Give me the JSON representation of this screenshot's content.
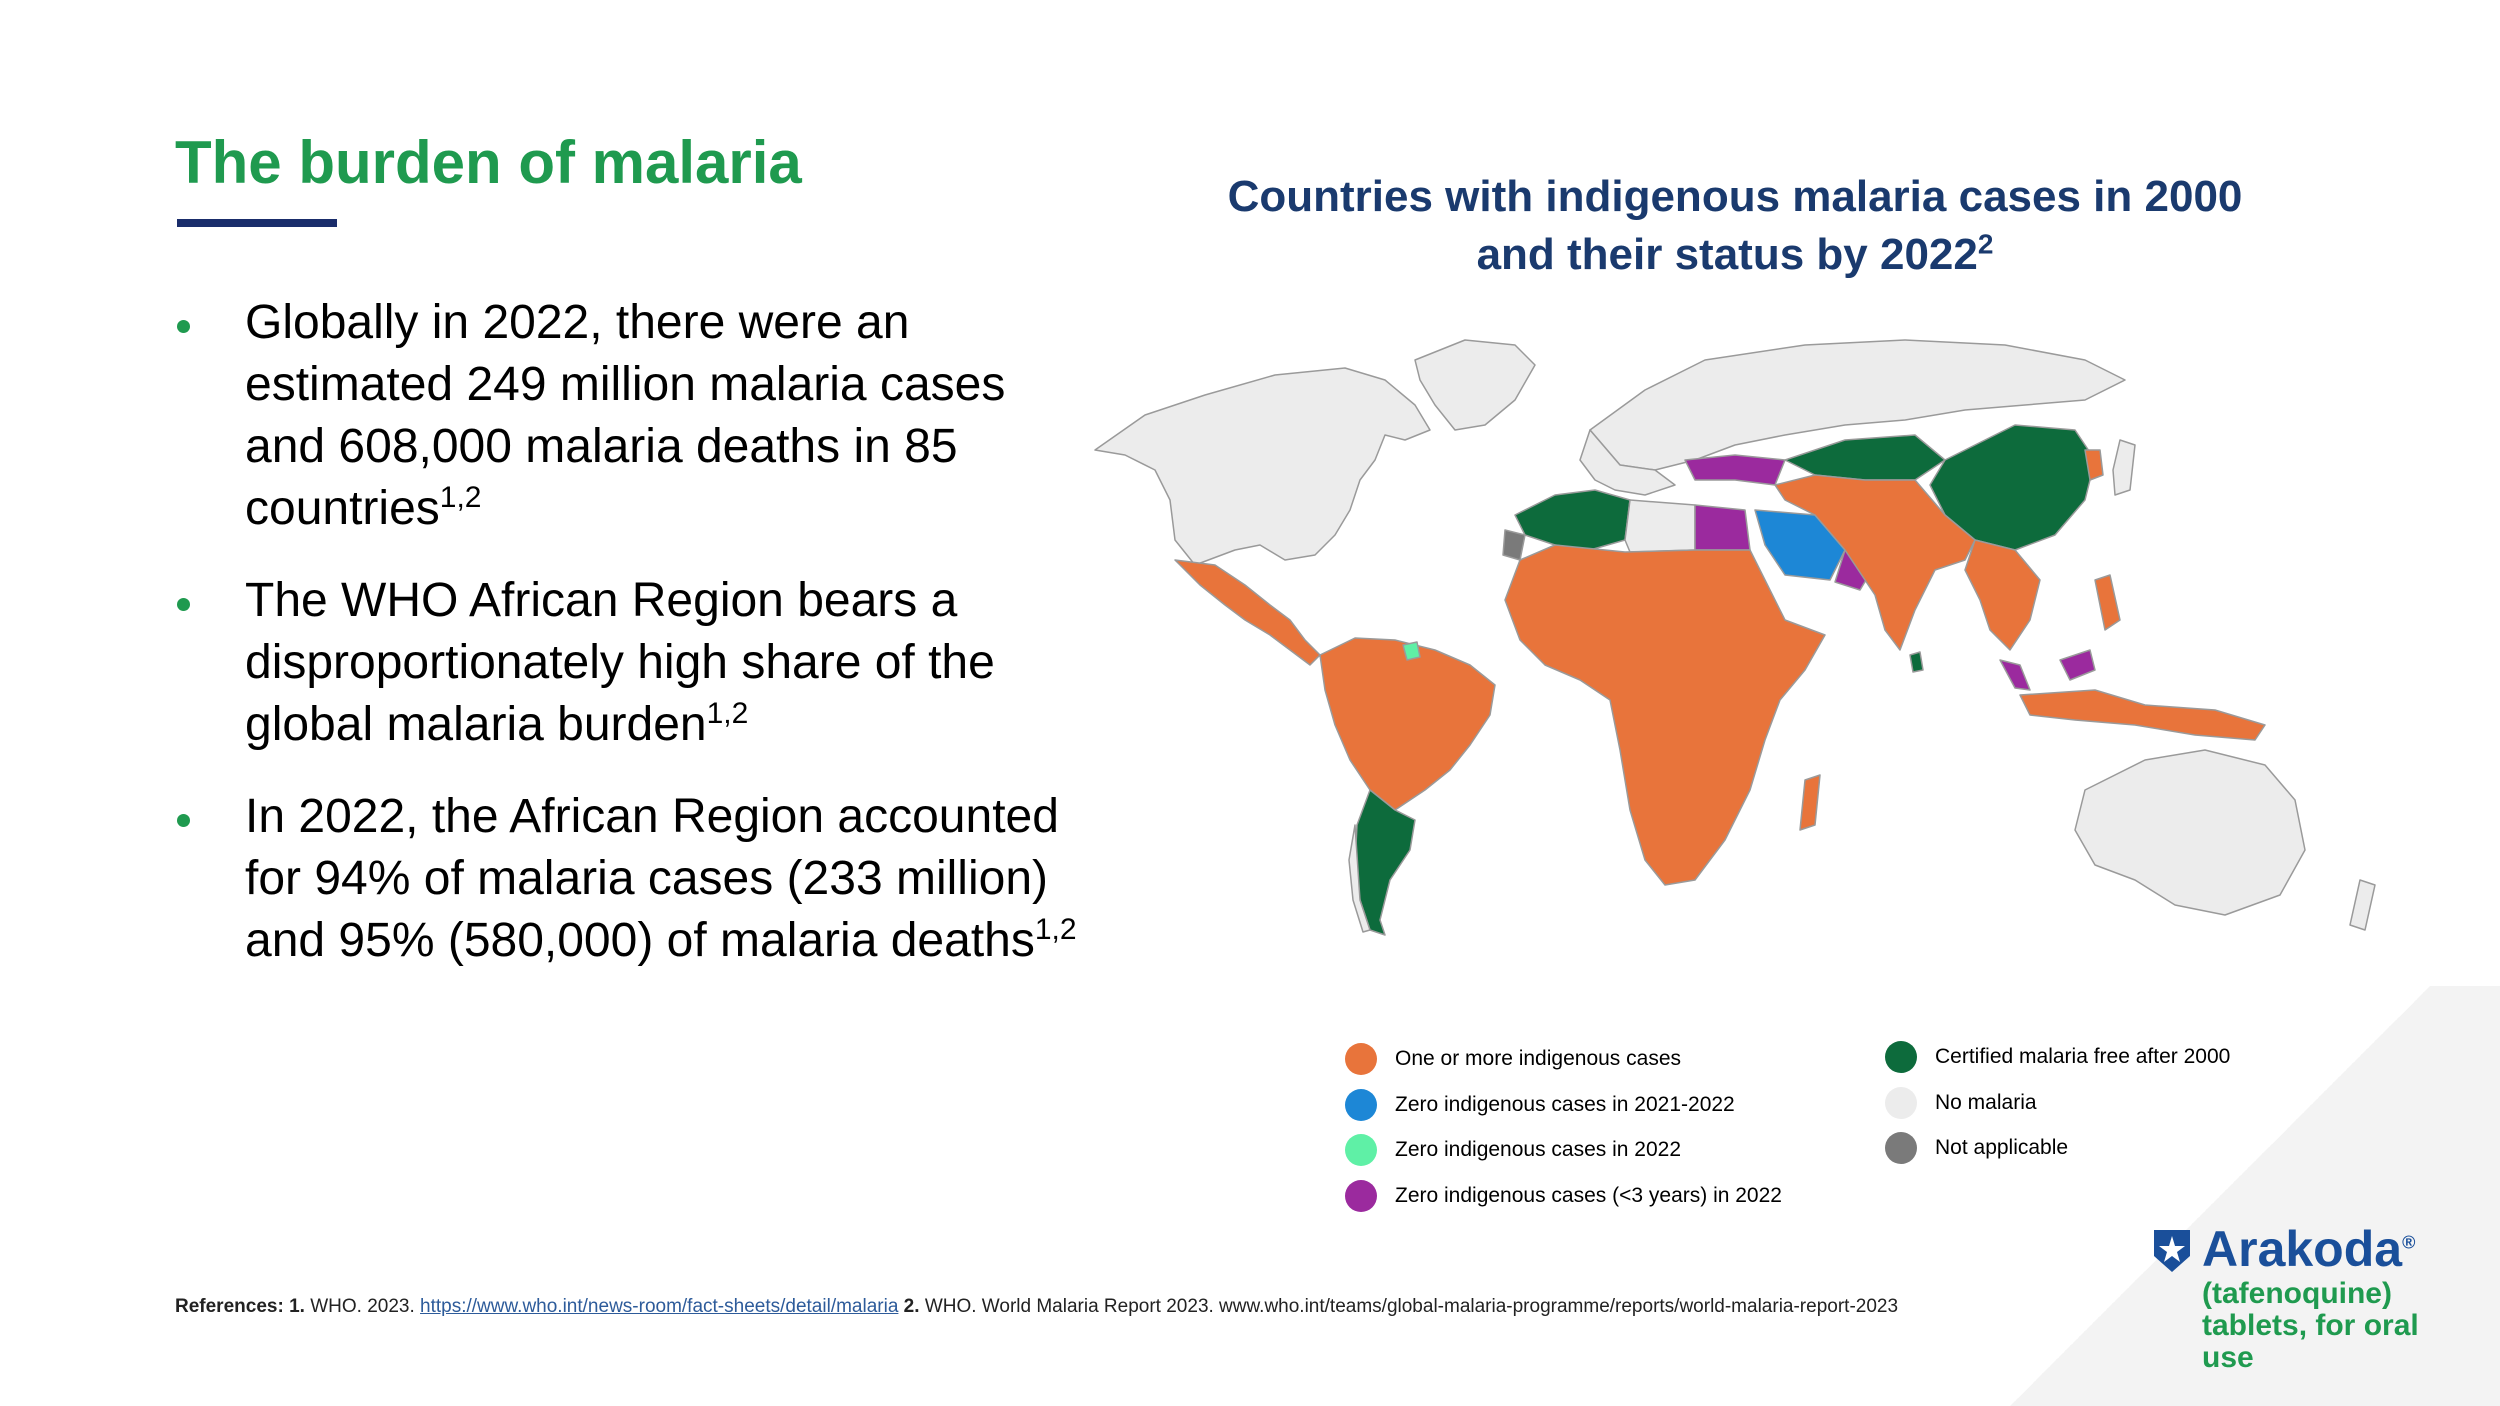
{
  "page": {
    "title": "The burden of malaria"
  },
  "bullets": [
    {
      "text": "Globally in 2022, there were an estimated 249 million malaria cases and 608,000 malaria deaths in 85 countries",
      "sup": "1,2"
    },
    {
      "text": "The WHO African Region bears a disproportionately high share of the global malaria burden",
      "sup": "1,2"
    },
    {
      "text": "In 2022, the African Region accounted for 94% of malaria cases (233 million) and 95% (580,000) of malaria deaths",
      "sup": "1,2"
    }
  ],
  "map": {
    "title_line1": "Countries with indigenous malaria cases in 2000",
    "title_line2": "and their status by 2022",
    "title_sup": "2",
    "legend": [
      {
        "label": "One or more indigenous cases",
        "color": "#e8743b"
      },
      {
        "label": "Zero indigenous cases in 2021-2022",
        "color": "#1d87d6"
      },
      {
        "label": "Zero indigenous cases in 2022",
        "color": "#5ff0a6"
      },
      {
        "label": "Zero indigenous cases (<3 years) in 2022",
        "color": "#9b2a9e"
      },
      {
        "label": "Certified malaria free after 2000",
        "color": "#0d6b3c"
      },
      {
        "label": "No malaria",
        "color": "#ececec"
      },
      {
        "label": "Not applicable",
        "color": "#7a7a7a"
      }
    ]
  },
  "references": {
    "label": "References:",
    "num1": "1.",
    "ref1_text": "WHO. 2023.",
    "ref1_link": "https://www.who.int/news-room/fact-sheets/detail/malaria",
    "num2": "2.",
    "ref2_text": "WHO. World Malaria Report 2023. www.who.int/teams/global-malaria-programme/reports/world-malaria-report-2023"
  },
  "logo": {
    "name": "Arakoda",
    "trademark": "®",
    "subtitle": "(tafenoquine) tablets, for oral use"
  },
  "colors": {
    "title_green": "#1f9a4f",
    "navy": "#1a3a6e"
  }
}
